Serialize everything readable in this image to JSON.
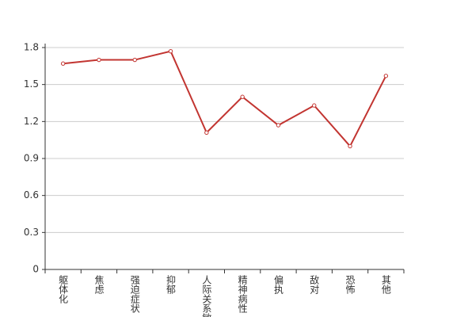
{
  "chart_data": {
    "type": "line",
    "categories": [
      "躯体化",
      "焦虑",
      "强迫症状",
      "抑郁",
      "人际关系敏感",
      "精神病性",
      "偏执",
      "敌对",
      "恐怖",
      "其他"
    ],
    "values": [
      1.67,
      1.7,
      1.7,
      1.77,
      1.11,
      1.4,
      1.17,
      1.33,
      1.0,
      1.57
    ],
    "color": "#c23531",
    "ylim": [
      0,
      1.8
    ],
    "yticks": [
      0,
      0.3,
      0.6,
      0.9,
      1.2,
      1.5,
      1.8
    ],
    "grid": true
  }
}
